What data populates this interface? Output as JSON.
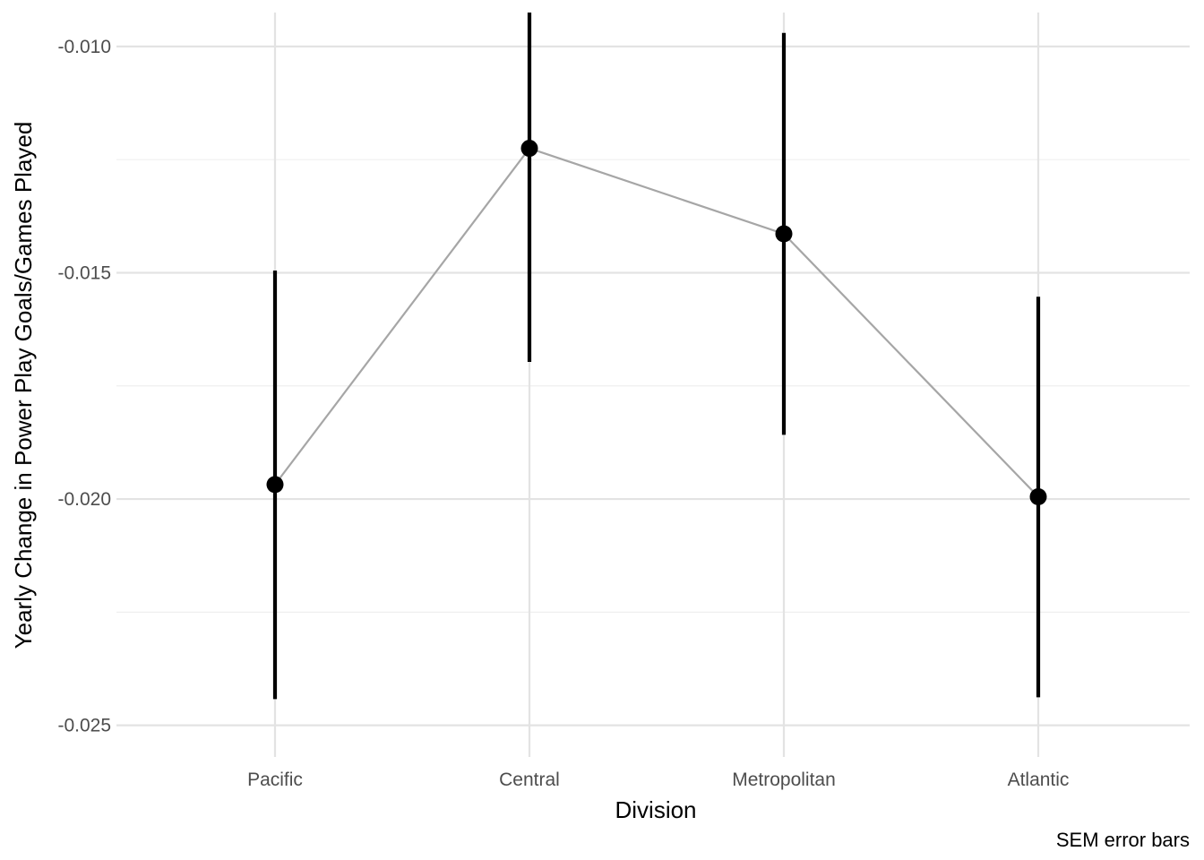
{
  "chart_data": {
    "type": "scatter",
    "categories": [
      "Pacific",
      "Central",
      "Metropolitan",
      "Atlantic"
    ],
    "series": [
      {
        "values": [
          -0.01968,
          -0.01225,
          -0.01414,
          -0.01995
        ],
        "error_low": [
          -0.02442,
          -0.01697,
          -0.01858,
          -0.02438
        ],
        "error_high": [
          -0.01495,
          -0.00925,
          -0.0097,
          -0.01553
        ]
      }
    ],
    "connect_points": true,
    "xlabel": "Division",
    "ylabel": "Yearly Change in Power Play Goals/Games Played",
    "caption": "SEM error bars",
    "ylim": [
      -0.0257,
      -0.00925
    ],
    "yticks": [
      -0.025,
      -0.02,
      -0.015,
      -0.01
    ],
    "ytick_labels": [
      "-0.025",
      "-0.020",
      "-0.015",
      "-0.010"
    ],
    "grid": true,
    "legend": "none",
    "colors": {
      "points": "#000000",
      "error_bars": "#000000",
      "connector_line": "#a6a6a6",
      "grid": "#e3e3e3"
    }
  }
}
